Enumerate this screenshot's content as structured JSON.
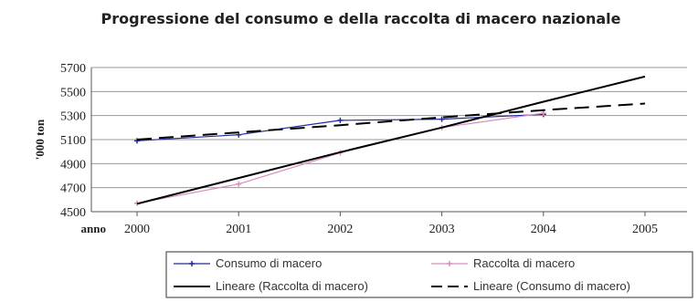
{
  "chart_data": {
    "type": "line",
    "title": "Progressione del consumo e della raccolta di macero nazionale",
    "xlabel": "anno",
    "ylabel": "'000 ton",
    "x": [
      "2000",
      "2001",
      "2002",
      "2003",
      "2004",
      "2005"
    ],
    "ylim": [
      4500,
      5700
    ],
    "yticks": [
      4500,
      4700,
      4900,
      5100,
      5300,
      5500,
      5700
    ],
    "grid": true,
    "legend_position": "bottom",
    "series": [
      {
        "name": "Consumo di macero",
        "values": [
          5090,
          5140,
          5260,
          5270,
          5310,
          null
        ],
        "style": "marker-line",
        "color": "#1f2a9c"
      },
      {
        "name": "Raccolta di macero",
        "values": [
          4570,
          4730,
          4990,
          5200,
          5320,
          null
        ],
        "style": "marker-line",
        "color": "#d98cc0"
      },
      {
        "name": "Lineare (Raccolta di macero)",
        "values": [
          4565,
          4780,
          4995,
          5200,
          5415,
          5625
        ],
        "style": "trend-solid",
        "color": "#000000"
      },
      {
        "name": "Lineare (Consumo di macero)",
        "values": [
          5100,
          5160,
          5220,
          5285,
          5345,
          5400
        ],
        "style": "trend-dashed",
        "color": "#000000"
      }
    ]
  }
}
